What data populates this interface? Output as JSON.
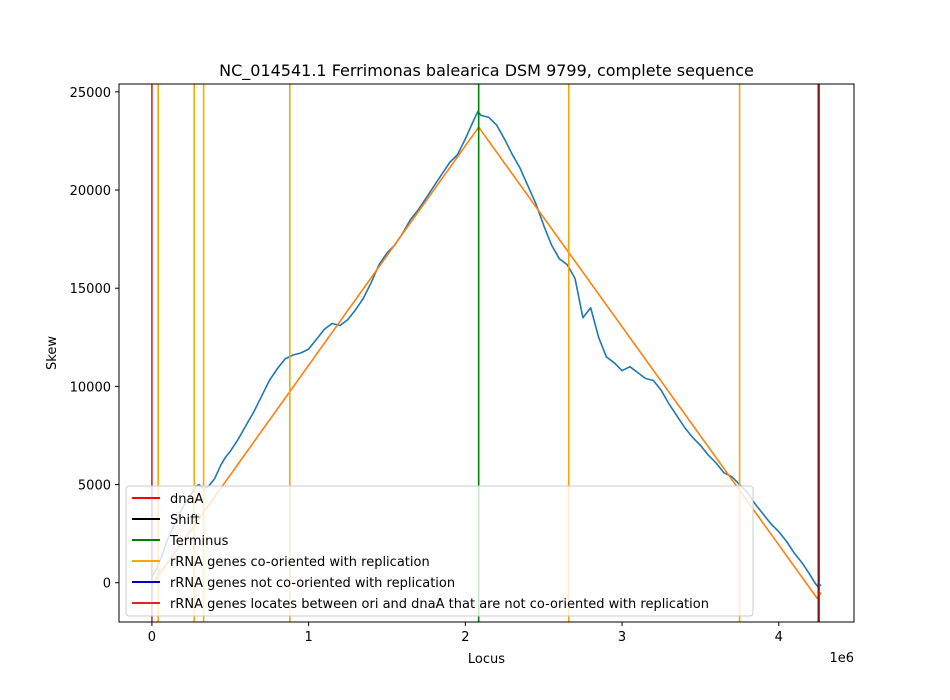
{
  "chart_data": {
    "type": "line",
    "title": "NC_014541.1 Ferrimonas balearica DSM 9799, complete sequence",
    "xlabel": "Locus",
    "ylabel": "Skew",
    "x_offset_label": "1e6",
    "xlim": [
      -210000,
      4480000
    ],
    "ylim": [
      -2000,
      25400
    ],
    "xticks": [
      0,
      1000000,
      2000000,
      3000000,
      4000000
    ],
    "xtick_labels": [
      "0",
      "1",
      "2",
      "3",
      "4"
    ],
    "yticks": [
      0,
      5000,
      10000,
      15000,
      20000,
      25000
    ],
    "ytick_labels": [
      "0",
      "5000",
      "10000",
      "15000",
      "20000",
      "25000"
    ],
    "grid": false,
    "legend_position": "lower-left",
    "series": [
      {
        "name": "",
        "color": "#1f77b4",
        "x": [
          0,
          30000,
          60000,
          100000,
          150000,
          200000,
          250000,
          280000,
          300000,
          330000,
          360000,
          400000,
          440000,
          470000,
          500000,
          550000,
          600000,
          650000,
          700000,
          750000,
          800000,
          850000,
          900000,
          950000,
          1000000,
          1050000,
          1100000,
          1150000,
          1200000,
          1250000,
          1300000,
          1350000,
          1400000,
          1450000,
          1500000,
          1550000,
          1600000,
          1650000,
          1700000,
          1750000,
          1800000,
          1850000,
          1900000,
          1950000,
          2000000,
          2050000,
          2080000,
          2100000,
          2150000,
          2200000,
          2250000,
          2300000,
          2350000,
          2400000,
          2450000,
          2500000,
          2550000,
          2600000,
          2650000,
          2700000,
          2750000,
          2800000,
          2850000,
          2900000,
          2950000,
          3000000,
          3050000,
          3100000,
          3150000,
          3200000,
          3250000,
          3300000,
          3350000,
          3400000,
          3450000,
          3500000,
          3550000,
          3600000,
          3650000,
          3700000,
          3750000,
          3800000,
          3850000,
          3900000,
          3950000,
          4000000,
          4050000,
          4100000,
          4150000,
          4200000,
          4230000,
          4250000,
          4270000
        ],
        "values": [
          300,
          700,
          1300,
          2200,
          3100,
          3900,
          4500,
          4900,
          5000,
          4800,
          4900,
          5300,
          6000,
          6400,
          6700,
          7300,
          8000,
          8700,
          9500,
          10300,
          10900,
          11400,
          11600,
          11700,
          11900,
          12400,
          12900,
          13200,
          13100,
          13400,
          13900,
          14500,
          15300,
          16200,
          16800,
          17200,
          17800,
          18500,
          19000,
          19600,
          20200,
          20800,
          21400,
          21800,
          22600,
          23500,
          24000,
          23800,
          23700,
          23300,
          22600,
          21800,
          21100,
          20200,
          19300,
          18200,
          17200,
          16500,
          16200,
          15500,
          13500,
          14000,
          12500,
          11500,
          11200,
          10800,
          11000,
          10700,
          10400,
          10300,
          9800,
          9100,
          8500,
          7900,
          7400,
          7000,
          6500,
          6100,
          5600,
          5400,
          5000,
          4600,
          4000,
          3500,
          3000,
          2600,
          2100,
          1500,
          1000,
          400,
          0,
          -200,
          -100
        ]
      },
      {
        "name": "",
        "color": "#ff7f0e",
        "x": [
          0,
          2085000,
          4245000,
          4270000
        ],
        "values": [
          -100,
          23200,
          -800,
          -500
        ]
      }
    ],
    "vlines": [
      {
        "x": 0,
        "color": "#d62728",
        "label": "dnaA"
      },
      {
        "x": 40000,
        "color": "#ffa500",
        "label": "rRNA genes co-oriented with replication"
      },
      {
        "x": 270000,
        "color": "#ffa500",
        "label": "rRNA genes co-oriented with replication"
      },
      {
        "x": 330000,
        "color": "#ffa500",
        "label": "rRNA genes co-oriented with replication"
      },
      {
        "x": 880000,
        "color": "#ffa500",
        "label": "rRNA genes co-oriented with replication"
      },
      {
        "x": 2085000,
        "color": "#008000",
        "label": "Terminus"
      },
      {
        "x": 2660000,
        "color": "#ffa500",
        "label": "rRNA genes co-oriented with replication"
      },
      {
        "x": 3750000,
        "color": "#ffa500",
        "label": "rRNA genes co-oriented with replication"
      },
      {
        "x": 4253000,
        "color": "#000000",
        "label": "Shift"
      },
      {
        "x": 4258000,
        "color": "#d62728",
        "label": "dnaA"
      }
    ],
    "legend": [
      {
        "label": "dnaA",
        "color": "#ff0000"
      },
      {
        "label": "Shift",
        "color": "#000000"
      },
      {
        "label": "Terminus",
        "color": "#008000"
      },
      {
        "label": "rRNA genes co-oriented with replication",
        "color": "#ffa500"
      },
      {
        "label": "rRNA genes not co-oriented with replication",
        "color": "#0000cd"
      },
      {
        "label": "rRNA genes locates between ori and dnaA that are not co-oriented with replication",
        "color": "#d62728"
      }
    ]
  }
}
